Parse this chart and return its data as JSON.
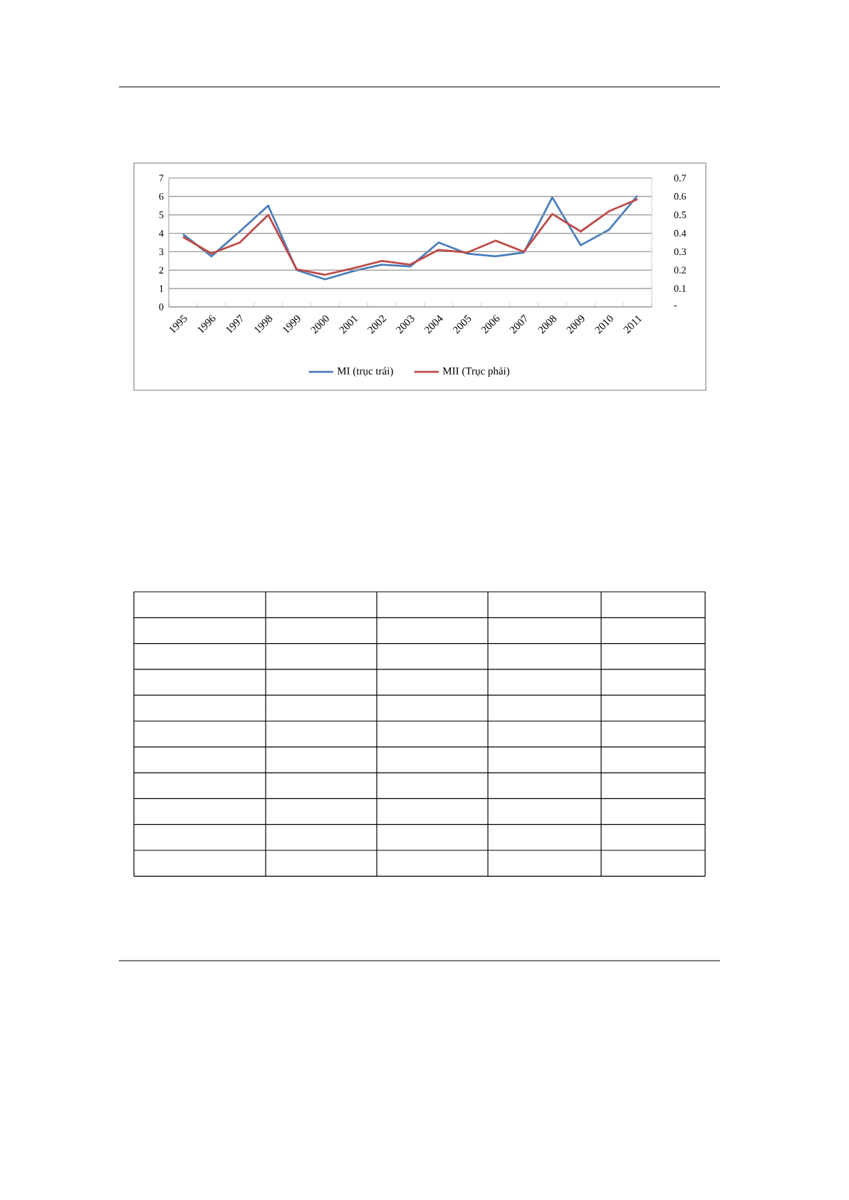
{
  "chart_data": {
    "type": "line",
    "categories": [
      "1995",
      "1996",
      "1997",
      "1998",
      "1999",
      "2000",
      "2001",
      "2002",
      "2003",
      "2004",
      "2005",
      "2006",
      "2007",
      "2008",
      "2009",
      "2010",
      "2011"
    ],
    "series": [
      {
        "name": "MI (trục trái)",
        "color": "#4a7ebb",
        "values": [
          3.95,
          2.75,
          4.1,
          5.5,
          2.0,
          1.5,
          1.95,
          2.3,
          2.2,
          3.5,
          2.9,
          2.75,
          2.95,
          5.95,
          3.35,
          4.2,
          6.05
        ]
      },
      {
        "name": "MII (Trục phải)",
        "color": "#be4b48",
        "axis": "y2",
        "values": [
          0.38,
          0.29,
          0.35,
          0.5,
          0.205,
          0.175,
          0.21,
          0.25,
          0.23,
          0.31,
          0.295,
          0.36,
          0.3,
          0.505,
          0.41,
          0.52,
          0.585
        ]
      }
    ],
    "ylim": [
      0,
      7
    ],
    "yticks": [
      0,
      1,
      2,
      3,
      4,
      5,
      6,
      7
    ],
    "y2lim": [
      0,
      0.7
    ],
    "y2ticks": [
      {
        "value": 0,
        "label": "-"
      },
      0.1,
      0.2,
      0.3,
      0.4,
      0.5,
      0.6,
      0.7
    ],
    "grid": true,
    "legend": "bottom"
  }
}
